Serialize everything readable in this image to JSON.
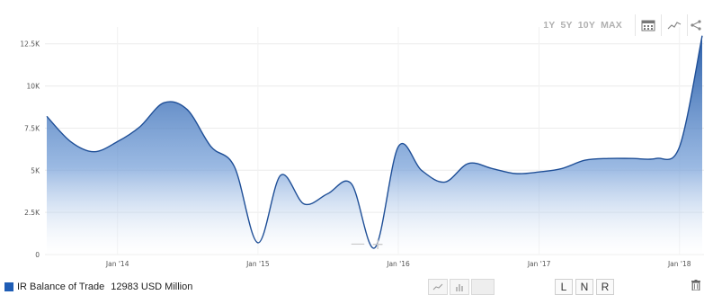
{
  "toolbar": {
    "ranges": [
      "1Y",
      "5Y",
      "10Y",
      "MAX"
    ],
    "icons": [
      "calendar-icon",
      "line-chart-icon",
      "share-icon"
    ]
  },
  "chart_data": {
    "type": "area",
    "title": "",
    "xlabel": "",
    "ylabel": "",
    "ylim": [
      0,
      13500
    ],
    "y_ticks": [
      0,
      2500,
      5000,
      7500,
      10000,
      12500
    ],
    "y_tick_labels": [
      "0",
      "2.5K",
      "5K",
      "7.5K",
      "10K",
      "12.5K"
    ],
    "x_tick_labels": [
      "Jan '14",
      "Jan '15",
      "Jan '16",
      "Jan '17",
      "Jan '18"
    ],
    "series": [
      {
        "name": "IR Balance of Trade",
        "color": "#1f5db5",
        "x": [
          "2013-07",
          "2013-09",
          "2013-11",
          "2014-01",
          "2014-03",
          "2014-05",
          "2014-07",
          "2014-09",
          "2014-11",
          "2015-01",
          "2015-03",
          "2015-05",
          "2015-07",
          "2015-09",
          "2015-11",
          "2016-01",
          "2016-03",
          "2016-05",
          "2016-07",
          "2016-09",
          "2016-11",
          "2017-01",
          "2017-03",
          "2017-05",
          "2017-07",
          "2017-09",
          "2017-11",
          "2018-01",
          "2018-03"
        ],
        "values": [
          8200,
          6700,
          6100,
          6700,
          7600,
          9000,
          8600,
          6400,
          5200,
          700,
          4700,
          3000,
          3600,
          4200,
          400,
          6400,
          5000,
          4300,
          5400,
          5100,
          4800,
          4900,
          5100,
          5600,
          5700,
          5700,
          5700,
          6400,
          12983
        ]
      }
    ],
    "legend": "bottom-left",
    "grid": true
  },
  "footer": {
    "legend_name": "IR Balance of Trade",
    "legend_value": "12983 USD Million",
    "scale_buttons": [
      "L",
      "N",
      "R"
    ]
  },
  "zoom": {
    "minus": "—",
    "plus": "+"
  }
}
